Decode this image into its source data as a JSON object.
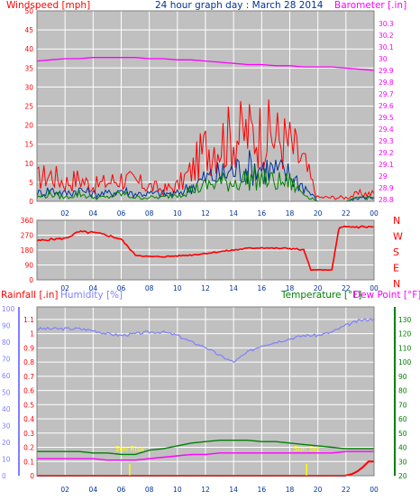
{
  "colors": {
    "panel_bg": "#c0c0c0",
    "grid": "#ffffff",
    "wind_speed": "#ff0000",
    "wind_avg": "#003399",
    "wind_green": "#008000",
    "barometer": "#ff00ff",
    "wind_dir": "#ff0000",
    "rainfall": "#ff0000",
    "humidity": "#8080ff",
    "temperature": "#008000",
    "dew_point": "#ff00ff",
    "sun_marker": "#ffff00"
  },
  "chart_data": [
    {
      "type": "line",
      "title": "24 hour graph day : March 28 2014",
      "left_axis_label": "Windspeed [mph]",
      "right_axis_label": "Barometer [.in]",
      "left_ticks": [
        "0",
        "5",
        "10",
        "15",
        "20",
        "25",
        "30",
        "35",
        "40",
        "45",
        "50"
      ],
      "right_ticks": [
        "28.8",
        "28.9",
        "29",
        "29.1",
        "29.2",
        "29.3",
        "29.4",
        "29.5",
        "29.6",
        "29.7",
        "29.8",
        "29.9",
        "30",
        "30.1",
        "30.2",
        "30.3"
      ],
      "x_ticks": [
        "02",
        "04",
        "06",
        "08",
        "10",
        "12",
        "14",
        "16",
        "18",
        "20",
        "22",
        "00"
      ],
      "x_hours": [
        0,
        1,
        2,
        3,
        4,
        5,
        6,
        7,
        8,
        9,
        10,
        11,
        12,
        13,
        14,
        15,
        16,
        17,
        18,
        19,
        20,
        21,
        22,
        23,
        24
      ],
      "ylim_left": [
        0,
        50
      ],
      "ylim_right": [
        28.8,
        30.3
      ],
      "grid": true,
      "series": [
        {
          "name": "Windspeed [mph]",
          "role": "gust",
          "values": [
            6,
            7,
            5,
            6,
            4,
            5,
            6,
            5,
            4,
            3,
            4,
            8,
            14,
            16,
            17,
            18,
            18,
            17,
            15,
            10,
            1,
            1,
            1,
            2,
            2
          ]
        },
        {
          "name": "",
          "role": "average",
          "values": [
            2,
            3,
            2,
            3,
            2,
            2,
            3,
            2,
            2,
            2,
            2,
            4,
            6,
            7,
            8,
            9,
            9,
            8,
            7,
            4,
            0,
            0,
            0,
            1,
            1
          ]
        },
        {
          "name": "",
          "role": "speed",
          "values": [
            1,
            2,
            1,
            2,
            1,
            1,
            2,
            1,
            1,
            1,
            2,
            3,
            4,
            5,
            5,
            6,
            6,
            5,
            5,
            2,
            0,
            0,
            0,
            1,
            1
          ]
        },
        {
          "name": "Barometer [.in]",
          "values": [
            29.98,
            29.99,
            30.0,
            30.0,
            30.01,
            30.01,
            30.01,
            30.01,
            30.0,
            30.0,
            29.99,
            29.99,
            29.98,
            29.97,
            29.96,
            29.95,
            29.95,
            29.94,
            29.94,
            29.93,
            29.93,
            29.93,
            29.92,
            29.91,
            29.9
          ]
        }
      ]
    },
    {
      "type": "line",
      "title": "",
      "left_ticks": [
        "0",
        "90",
        "180",
        "270",
        "360"
      ],
      "right_labels": [
        "N",
        "W",
        "S",
        "E",
        "N"
      ],
      "x_ticks": [
        "02",
        "04",
        "06",
        "08",
        "10",
        "12",
        "14",
        "16",
        "18",
        "20",
        "22",
        "00"
      ],
      "ylim": [
        0,
        360
      ],
      "grid": true,
      "series": [
        {
          "name": "",
          "x_hours": [
            0,
            1,
            2,
            3,
            4,
            5,
            6,
            7,
            8,
            9,
            10,
            11,
            12,
            13,
            14,
            15,
            16,
            17,
            18,
            19,
            19.5,
            20,
            21,
            21.5,
            22,
            23,
            24
          ],
          "values": [
            235,
            245,
            250,
            290,
            285,
            270,
            245,
            150,
            140,
            140,
            145,
            150,
            160,
            170,
            180,
            190,
            195,
            190,
            190,
            180,
            60,
            60,
            60,
            310,
            320,
            320,
            320
          ]
        }
      ]
    },
    {
      "type": "line",
      "title": "",
      "left_axis_label": "Rainfall [.in]",
      "left_axis_label_2": "Humidity [%]",
      "right_axis_label": "Temperature [°F]",
      "right_axis_label_2": "Dew Point [°F]",
      "rain_ticks": [
        "0",
        "0.1",
        "0.2",
        "0.3",
        "0.4",
        "0.5",
        "0.6",
        "0.7",
        "0.8",
        "0.9",
        "1",
        "1.1"
      ],
      "humidity_ticks": [
        "0",
        "10",
        "20",
        "30",
        "40",
        "50",
        "60",
        "70",
        "80",
        "90",
        "100"
      ],
      "temp_ticks": [
        "20",
        "30",
        "40",
        "50",
        "60",
        "70",
        "80",
        "90",
        "100",
        "110",
        "120",
        "130"
      ],
      "x_ticks": [
        "02",
        "04",
        "06",
        "08",
        "10",
        "12",
        "14",
        "16",
        "18",
        "20",
        "22",
        "00"
      ],
      "x_hours": [
        0,
        1,
        2,
        3,
        4,
        5,
        6,
        7,
        8,
        9,
        10,
        11,
        12,
        13,
        14,
        15,
        16,
        17,
        18,
        19,
        20,
        21,
        22,
        23,
        24
      ],
      "ylim_rain": [
        0,
        1.15
      ],
      "ylim_temp": [
        20,
        135
      ],
      "grid": true,
      "annotations": [
        {
          "text": "Sun Rise",
          "hour": 6.6
        },
        {
          "text": "Sun Set",
          "hour": 19.2
        }
      ],
      "series": [
        {
          "name": "Humidity [%]",
          "axis": "humidity",
          "values": [
            88,
            88,
            88,
            88,
            87,
            85,
            84,
            85,
            86,
            86,
            84,
            80,
            77,
            72,
            68,
            74,
            78,
            80,
            82,
            84,
            84,
            86,
            90,
            93,
            94
          ]
        },
        {
          "name": "Temperature [°F]",
          "axis": "temp",
          "values": [
            37,
            37,
            37,
            37,
            36,
            36,
            35,
            35,
            38,
            39,
            41,
            43,
            44,
            45,
            45,
            45,
            44,
            44,
            43,
            42,
            41,
            40,
            39,
            39,
            39
          ]
        },
        {
          "name": "Dew Point [°F]",
          "axis": "temp",
          "values": [
            32,
            32,
            32,
            32,
            32,
            31,
            31,
            31,
            32,
            33,
            34,
            35,
            35,
            36,
            36,
            36,
            36,
            36,
            36,
            36,
            36,
            36,
            37,
            37,
            37
          ]
        },
        {
          "name": "Rainfall [.in]",
          "axis": "rain",
          "x_hours": [
            0,
            21.9,
            22.4,
            22.8,
            23.2,
            23.6,
            24
          ],
          "values": [
            0,
            0,
            0.01,
            0.03,
            0.06,
            0.1,
            0.1
          ]
        }
      ]
    }
  ]
}
